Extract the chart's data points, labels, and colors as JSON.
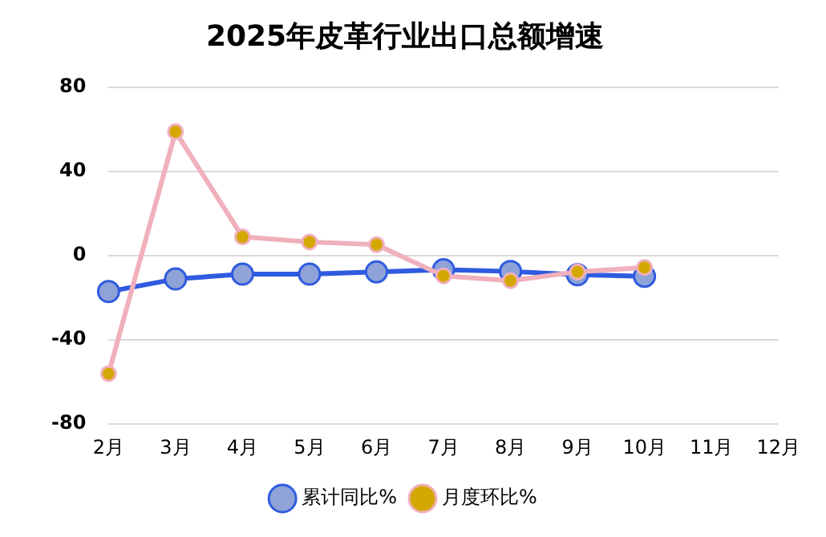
{
  "chart_data": {
    "type": "line",
    "title": "2025年皮革行业出口总额增速",
    "categories": [
      "2月",
      "3月",
      "4月",
      "5月",
      "6月",
      "7月",
      "8月",
      "9月",
      "10月",
      "11月",
      "12月"
    ],
    "series": [
      {
        "name": "累计同比%",
        "color": "#2f5be0",
        "values": [
          -17,
          -11,
          -8.7,
          -8.7,
          -7.6,
          -6.6,
          -7.4,
          -9,
          -9.7,
          null,
          null
        ]
      },
      {
        "name": "月度环比%",
        "color": "#f0b0bc",
        "values": [
          -56,
          59,
          9,
          6.6,
          5.3,
          -9.5,
          -11.8,
          -7.6,
          -5.5,
          null,
          null
        ]
      }
    ],
    "ylim": [
      -80,
      80
    ],
    "yticks": [
      -80,
      -40,
      0,
      40,
      80
    ],
    "grid": "y",
    "legend": "bottom",
    "marker": "circle",
    "line_style": "solid"
  }
}
